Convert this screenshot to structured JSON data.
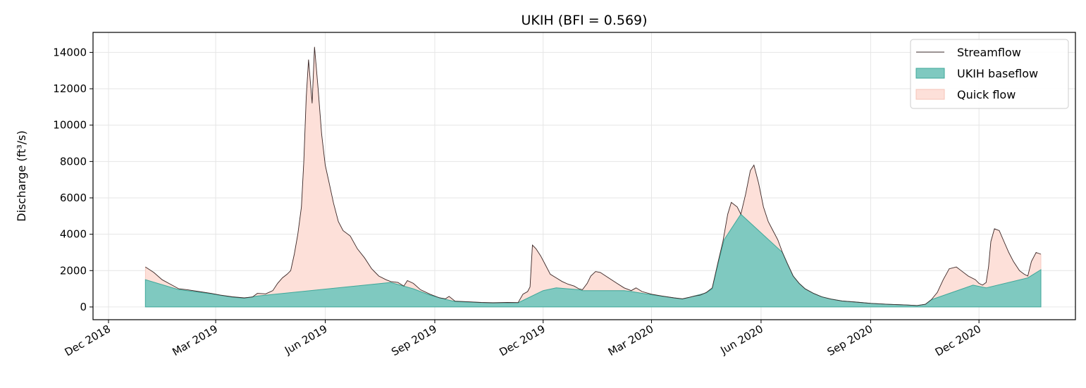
{
  "chart_data": {
    "type": "area",
    "title": "UKIH (BFI = 0.569)",
    "xlabel": "",
    "ylabel": "Discharge (ft³/s)",
    "ylim": [
      -700,
      15100
    ],
    "xlim": [
      "2018-11-18",
      "2021-02-20"
    ],
    "grid": true,
    "legend_position": "top-right",
    "x_ticks": [
      {
        "date": "2018-12-01",
        "label": "Dec 2018"
      },
      {
        "date": "2019-03-01",
        "label": "Mar 2019"
      },
      {
        "date": "2019-06-01",
        "label": "Jun 2019"
      },
      {
        "date": "2019-09-01",
        "label": "Sep 2019"
      },
      {
        "date": "2019-12-01",
        "label": "Dec 2019"
      },
      {
        "date": "2020-03-01",
        "label": "Mar 2020"
      },
      {
        "date": "2020-06-01",
        "label": "Jun 2020"
      },
      {
        "date": "2020-09-01",
        "label": "Sep 2020"
      },
      {
        "date": "2020-12-01",
        "label": "Dec 2020"
      }
    ],
    "y_ticks": [
      0,
      2000,
      4000,
      6000,
      8000,
      10000,
      12000,
      14000
    ],
    "colors": {
      "streamflow": "#3a2a2a",
      "baseflow_fill": "#7fc9c0",
      "baseflow_edge": "#3fa89a",
      "quickflow_fill": "#fde0d9",
      "quickflow_edge": "#f6c4b8",
      "grid": "#e6e6e6"
    },
    "series": [
      {
        "name": "Streamflow",
        "style": "line",
        "points": [
          [
            "2019-01-01",
            2200
          ],
          [
            "2019-01-08",
            1900
          ],
          [
            "2019-01-15",
            1500
          ],
          [
            "2019-01-22",
            1250
          ],
          [
            "2019-01-29",
            1000
          ],
          [
            "2019-02-05",
            950
          ],
          [
            "2019-02-15",
            850
          ],
          [
            "2019-02-25",
            750
          ],
          [
            "2019-03-05",
            650
          ],
          [
            "2019-03-15",
            560
          ],
          [
            "2019-03-25",
            500
          ],
          [
            "2019-04-01",
            550
          ],
          [
            "2019-04-05",
            750
          ],
          [
            "2019-04-12",
            720
          ],
          [
            "2019-04-18",
            900
          ],
          [
            "2019-04-22",
            1300
          ],
          [
            "2019-04-26",
            1600
          ],
          [
            "2019-04-30",
            1800
          ],
          [
            "2019-05-03",
            2000
          ],
          [
            "2019-05-06",
            2900
          ],
          [
            "2019-05-09",
            4000
          ],
          [
            "2019-05-12",
            5500
          ],
          [
            "2019-05-14",
            8000
          ],
          [
            "2019-05-16",
            11500
          ],
          [
            "2019-05-18",
            13600
          ],
          [
            "2019-05-21",
            11200
          ],
          [
            "2019-05-23",
            14300
          ],
          [
            "2019-05-26",
            12000
          ],
          [
            "2019-05-29",
            9500
          ],
          [
            "2019-06-01",
            7800
          ],
          [
            "2019-06-04",
            6900
          ],
          [
            "2019-06-08",
            5700
          ],
          [
            "2019-06-12",
            4700
          ],
          [
            "2019-06-16",
            4200
          ],
          [
            "2019-06-22",
            3900
          ],
          [
            "2019-06-28",
            3200
          ],
          [
            "2019-07-04",
            2700
          ],
          [
            "2019-07-10",
            2100
          ],
          [
            "2019-07-16",
            1700
          ],
          [
            "2019-07-22",
            1500
          ],
          [
            "2019-07-26",
            1400
          ],
          [
            "2019-08-01",
            1350
          ],
          [
            "2019-08-06",
            1150
          ],
          [
            "2019-08-09",
            1450
          ],
          [
            "2019-08-14",
            1300
          ],
          [
            "2019-08-20",
            950
          ],
          [
            "2019-08-28",
            700
          ],
          [
            "2019-09-05",
            500
          ],
          [
            "2019-09-10",
            450
          ],
          [
            "2019-09-13",
            580
          ],
          [
            "2019-09-18",
            320
          ],
          [
            "2019-09-28",
            290
          ],
          [
            "2019-10-10",
            250
          ],
          [
            "2019-10-20",
            230
          ],
          [
            "2019-11-01",
            250
          ],
          [
            "2019-11-10",
            240
          ],
          [
            "2019-11-14",
            700
          ],
          [
            "2019-11-18",
            850
          ],
          [
            "2019-11-20",
            1100
          ],
          [
            "2019-11-22",
            3400
          ],
          [
            "2019-11-25",
            3200
          ],
          [
            "2019-11-29",
            2800
          ],
          [
            "2019-12-03",
            2300
          ],
          [
            "2019-12-07",
            1800
          ],
          [
            "2019-12-12",
            1600
          ],
          [
            "2019-12-17",
            1400
          ],
          [
            "2019-12-22",
            1250
          ],
          [
            "2019-12-27",
            1150
          ],
          [
            "2019-12-31",
            1000
          ],
          [
            "2020-01-03",
            950
          ],
          [
            "2020-01-07",
            1300
          ],
          [
            "2020-01-10",
            1700
          ],
          [
            "2020-01-14",
            1950
          ],
          [
            "2020-01-18",
            1900
          ],
          [
            "2020-01-25",
            1600
          ],
          [
            "2020-02-01",
            1300
          ],
          [
            "2020-02-07",
            1050
          ],
          [
            "2020-02-13",
            900
          ],
          [
            "2020-02-17",
            1050
          ],
          [
            "2020-02-22",
            850
          ],
          [
            "2020-03-01",
            700
          ],
          [
            "2020-03-10",
            600
          ],
          [
            "2020-03-20",
            500
          ],
          [
            "2020-03-27",
            450
          ],
          [
            "2020-04-01",
            520
          ],
          [
            "2020-04-06",
            600
          ],
          [
            "2020-04-11",
            650
          ],
          [
            "2020-04-16",
            800
          ],
          [
            "2020-04-21",
            1050
          ],
          [
            "2020-04-26",
            2500
          ],
          [
            "2020-04-30",
            3600
          ],
          [
            "2020-05-04",
            5100
          ],
          [
            "2020-05-07",
            5750
          ],
          [
            "2020-05-12",
            5500
          ],
          [
            "2020-05-15",
            5100
          ],
          [
            "2020-05-19",
            6200
          ],
          [
            "2020-05-23",
            7500
          ],
          [
            "2020-05-26",
            7800
          ],
          [
            "2020-05-30",
            6800
          ],
          [
            "2020-06-03",
            5500
          ],
          [
            "2020-06-07",
            4700
          ],
          [
            "2020-06-11",
            4200
          ],
          [
            "2020-06-15",
            3700
          ],
          [
            "2020-06-19",
            3000
          ],
          [
            "2020-06-23",
            2400
          ],
          [
            "2020-06-28",
            1700
          ],
          [
            "2020-07-03",
            1300
          ],
          [
            "2020-07-08",
            1000
          ],
          [
            "2020-07-15",
            750
          ],
          [
            "2020-07-22",
            560
          ],
          [
            "2020-07-30",
            430
          ],
          [
            "2020-08-08",
            330
          ],
          [
            "2020-08-20",
            270
          ],
          [
            "2020-09-01",
            200
          ],
          [
            "2020-09-15",
            150
          ],
          [
            "2020-10-01",
            110
          ],
          [
            "2020-10-10",
            80
          ],
          [
            "2020-10-17",
            150
          ],
          [
            "2020-10-22",
            400
          ],
          [
            "2020-10-27",
            800
          ],
          [
            "2020-11-01",
            1500
          ],
          [
            "2020-11-06",
            2100
          ],
          [
            "2020-11-12",
            2200
          ],
          [
            "2020-11-16",
            2000
          ],
          [
            "2020-11-22",
            1700
          ],
          [
            "2020-11-28",
            1500
          ],
          [
            "2020-12-01",
            1300
          ],
          [
            "2020-12-04",
            1200
          ],
          [
            "2020-12-07",
            1350
          ],
          [
            "2020-12-09",
            2200
          ],
          [
            "2020-12-11",
            3600
          ],
          [
            "2020-12-14",
            4300
          ],
          [
            "2020-12-18",
            4200
          ],
          [
            "2020-12-22",
            3600
          ],
          [
            "2020-12-26",
            3000
          ],
          [
            "2020-12-30",
            2500
          ],
          [
            "2021-01-04",
            2000
          ],
          [
            "2021-01-08",
            1800
          ],
          [
            "2021-01-11",
            1700
          ],
          [
            "2021-01-14",
            2500
          ],
          [
            "2021-01-18",
            3000
          ],
          [
            "2021-01-22",
            2900
          ]
        ]
      },
      {
        "name": "UKIH baseflow",
        "style": "area",
        "points": [
          [
            "2019-01-01",
            1500
          ],
          [
            "2019-01-29",
            950
          ],
          [
            "2019-02-05",
            900
          ],
          [
            "2019-02-25",
            720
          ],
          [
            "2019-03-15",
            540
          ],
          [
            "2019-03-25",
            480
          ],
          [
            "2019-04-05",
            600
          ],
          [
            "2019-07-26",
            1350
          ],
          [
            "2019-08-14",
            1000
          ],
          [
            "2019-08-28",
            650
          ],
          [
            "2019-09-10",
            420
          ],
          [
            "2019-09-18",
            300
          ],
          [
            "2019-10-10",
            240
          ],
          [
            "2019-11-10",
            230
          ],
          [
            "2019-12-01",
            900
          ],
          [
            "2019-12-12",
            1050
          ],
          [
            "2019-12-31",
            950
          ],
          [
            "2020-01-03",
            900
          ],
          [
            "2020-02-07",
            900
          ],
          [
            "2020-02-13",
            850
          ],
          [
            "2020-03-01",
            670
          ],
          [
            "2020-03-27",
            430
          ],
          [
            "2020-04-16",
            780
          ],
          [
            "2020-04-21",
            1000
          ],
          [
            "2020-04-26",
            2400
          ],
          [
            "2020-05-01",
            3700
          ],
          [
            "2020-05-15",
            5100
          ],
          [
            "2020-06-19",
            3000
          ],
          [
            "2020-06-23",
            2400
          ],
          [
            "2020-06-28",
            1700
          ],
          [
            "2020-07-03",
            1300
          ],
          [
            "2020-07-08",
            1000
          ],
          [
            "2020-07-15",
            750
          ],
          [
            "2020-07-22",
            560
          ],
          [
            "2020-07-30",
            430
          ],
          [
            "2020-08-08",
            330
          ],
          [
            "2020-08-20",
            270
          ],
          [
            "2020-09-01",
            200
          ],
          [
            "2020-09-15",
            150
          ],
          [
            "2020-10-01",
            110
          ],
          [
            "2020-10-10",
            80
          ],
          [
            "2020-10-17",
            150
          ],
          [
            "2020-10-22",
            400
          ],
          [
            "2020-11-26",
            1200
          ],
          [
            "2020-12-07",
            1050
          ],
          [
            "2021-01-11",
            1600
          ],
          [
            "2021-01-22",
            2050
          ]
        ]
      },
      {
        "name": "Quick flow",
        "style": "band",
        "between": [
          "UKIH baseflow",
          "Streamflow"
        ]
      }
    ]
  }
}
